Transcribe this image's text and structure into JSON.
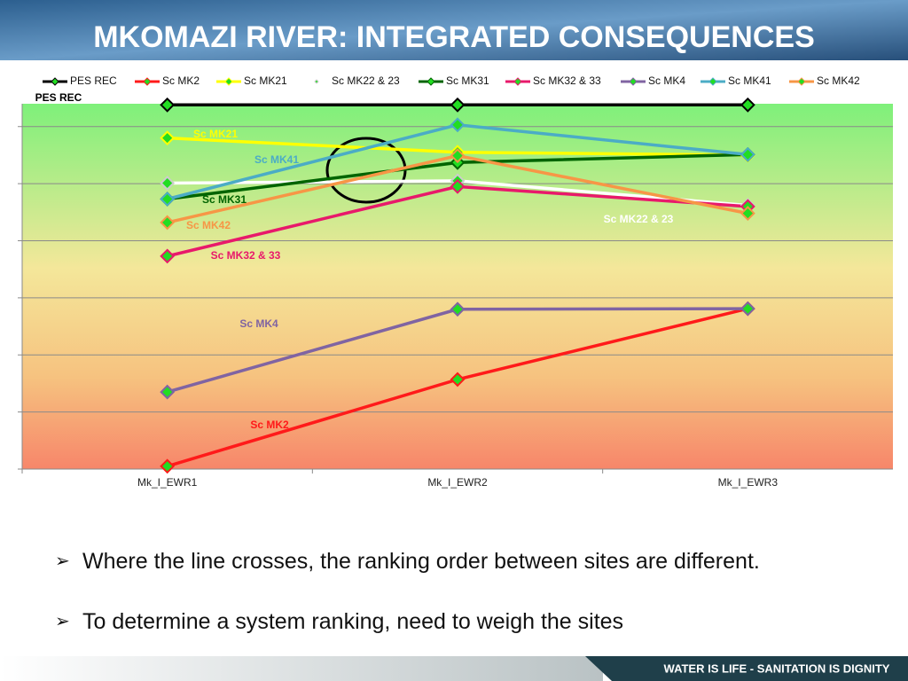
{
  "chart_data": {
    "type": "line",
    "title": "MKOMAZI RIVER:  INTEGRATED CONSEQUENCES",
    "categories": [
      "Mk_I_EWR1",
      "Mk_I_EWR2",
      "Mk_I_EWR3"
    ],
    "ylim": [
      0,
      6.4
    ],
    "ygrid": [
      0,
      1,
      2,
      3,
      4,
      5,
      6
    ],
    "legend": "top",
    "series": [
      {
        "name": "PES REC",
        "color": "#000000",
        "values": [
          6.38,
          6.38,
          6.38
        ]
      },
      {
        "name": "Sc MK2",
        "color": "#ff1a1a",
        "values": [
          0.05,
          1.57,
          2.81
        ]
      },
      {
        "name": "Sc MK21",
        "color": "#ffff00",
        "values": [
          5.8,
          5.55,
          5.5
        ]
      },
      {
        "name": "Sc MK22 & 23",
        "color": "#ffffff",
        "values": [
          5.01,
          5.05,
          4.62
        ]
      },
      {
        "name": "Sc MK31",
        "color": "#006400",
        "values": [
          4.73,
          5.37,
          5.51
        ]
      },
      {
        "name": "Sc MK32 & 33",
        "color": "#e8196b",
        "values": [
          3.73,
          4.95,
          4.6
        ]
      },
      {
        "name": "Sc MK4",
        "color": "#8064a2",
        "values": [
          1.35,
          2.8,
          2.81
        ]
      },
      {
        "name": "Sc MK41",
        "color": "#4bacc6",
        "values": [
          4.73,
          6.03,
          5.51
        ]
      },
      {
        "name": "Sc MK42",
        "color": "#f79646",
        "values": [
          4.32,
          5.49,
          4.48
        ]
      }
    ]
  },
  "bullets": [
    "Where the line crosses, the ranking order between sites are different.",
    "To determine a system ranking, need to weigh the sites"
  ],
  "footer": "WATER IS LIFE - SANITATION IS DIGNITY"
}
